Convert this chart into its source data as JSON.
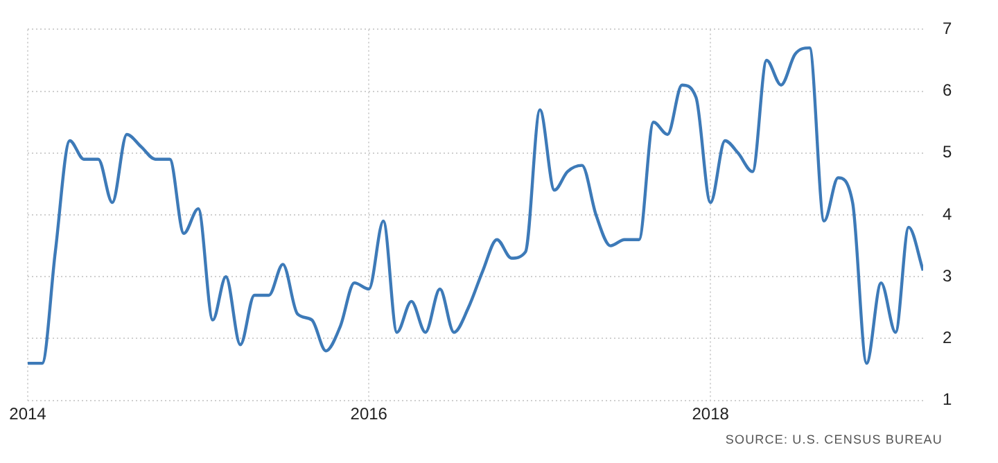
{
  "chart_data": {
    "type": "line",
    "x": [
      "2014-01",
      "2014-02",
      "2014-03",
      "2014-04",
      "2014-05",
      "2014-06",
      "2014-07",
      "2014-08",
      "2014-09",
      "2014-10",
      "2014-11",
      "2014-12",
      "2015-01",
      "2015-02",
      "2015-03",
      "2015-04",
      "2015-05",
      "2015-06",
      "2015-07",
      "2015-08",
      "2015-09",
      "2015-10",
      "2015-11",
      "2015-12",
      "2016-01",
      "2016-02",
      "2016-03",
      "2016-04",
      "2016-05",
      "2016-06",
      "2016-07",
      "2016-08",
      "2016-09",
      "2016-10",
      "2016-11",
      "2016-12",
      "2017-01",
      "2017-02",
      "2017-03",
      "2017-04",
      "2017-05",
      "2017-06",
      "2017-07",
      "2017-08",
      "2017-09",
      "2017-10",
      "2017-11",
      "2017-12",
      "2018-01",
      "2018-02",
      "2018-03",
      "2018-04",
      "2018-05",
      "2018-06",
      "2018-07",
      "2018-08",
      "2018-09",
      "2018-10",
      "2018-11",
      "2018-12",
      "2019-01",
      "2019-02",
      "2019-03",
      "2019-04"
    ],
    "series": [
      {
        "color": "#3d7ab8",
        "values": [
          1.6,
          1.6,
          3.4,
          5.2,
          4.9,
          4.9,
          4.2,
          5.3,
          5.1,
          4.9,
          4.9,
          3.7,
          4.1,
          2.3,
          3.0,
          1.9,
          2.7,
          2.7,
          3.2,
          2.4,
          2.3,
          1.8,
          2.2,
          2.9,
          2.8,
          3.9,
          2.1,
          2.6,
          2.1,
          2.8,
          2.1,
          2.5,
          3.1,
          3.6,
          3.3,
          3.4,
          5.7,
          4.4,
          4.7,
          4.8,
          4.0,
          3.5,
          3.6,
          3.6,
          5.5,
          5.3,
          6.1,
          5.9,
          4.2,
          5.2,
          5.0,
          4.7,
          6.5,
          6.1,
          6.6,
          6.7,
          3.9,
          4.6,
          4.2,
          1.6,
          2.9,
          2.1,
          3.8,
          3.1
        ]
      }
    ],
    "xlim": [
      "2014-01",
      "2019-04"
    ],
    "xticks": [
      {
        "value": "2014-01",
        "label": "2014"
      },
      {
        "value": "2016-01",
        "label": "2016"
      },
      {
        "value": "2018-01",
        "label": "2018"
      }
    ],
    "ylim": [
      1,
      7
    ],
    "yticks": [
      1,
      2,
      3,
      4,
      5,
      6,
      7
    ],
    "grid": true,
    "legend": false,
    "marker": "none",
    "line_style": "solid",
    "annotations": [
      "SOURCE: U.S. CENSUS BUREAU"
    ]
  }
}
